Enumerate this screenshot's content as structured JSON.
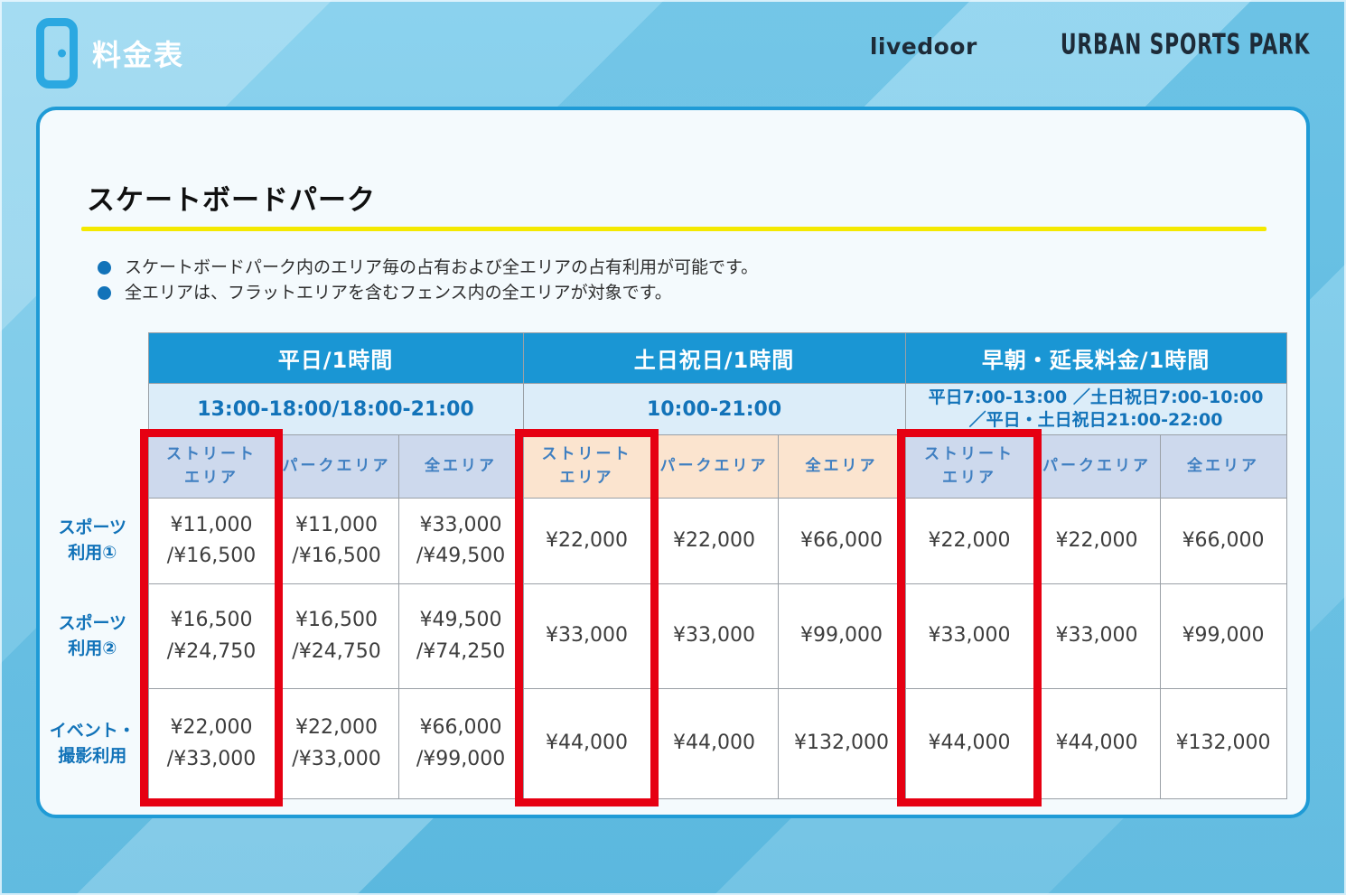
{
  "page_title": "料金表",
  "logo": {
    "livedoor": "livedoor",
    "park": "URBAN SPORTS PARK"
  },
  "section": {
    "title": "スケートボードパーク",
    "notes": [
      "スケートボードパーク内のエリア毎の占有および全エリアの占有利用が可能です。",
      "全エリアは、フラットエリアを含むフェンス内の全エリアが対象です。"
    ]
  },
  "table": {
    "groups": [
      {
        "label": "平日/1時間",
        "time": "13:00-18:00/18:00-21:00"
      },
      {
        "label": "土日祝日/1時間",
        "time": "10:00-21:00"
      },
      {
        "label": "早朝・延長料金/1時間",
        "time": "平日7:00-13:00 ／土日祝日7:00-10:00\n／平日・土日祝日21:00-22:00"
      }
    ],
    "area_headers": [
      "ストリート\nエリア",
      "パークエリア",
      "全エリア"
    ],
    "rows": [
      {
        "label": "スポーツ\n利用①",
        "values": [
          "¥11,000\n/¥16,500",
          "¥11,000\n/¥16,500",
          "¥33,000\n/¥49,500",
          "¥22,000",
          "¥22,000",
          "¥66,000",
          "¥22,000",
          "¥22,000",
          "¥66,000"
        ]
      },
      {
        "label": "スポーツ\n利用②",
        "values": [
          "¥16,500\n/¥24,750",
          "¥16,500\n/¥24,750",
          "¥49,500\n/¥74,250",
          "¥33,000",
          "¥33,000",
          "¥99,000",
          "¥33,000",
          "¥33,000",
          "¥99,000"
        ]
      },
      {
        "label": "イベント・\n撮影利用",
        "values": [
          "¥22,000\n/¥33,000",
          "¥22,000\n/¥33,000",
          "¥66,000\n/¥99,000",
          "¥44,000",
          "¥44,000",
          "¥132,000",
          "¥44,000",
          "¥44,000",
          "¥132,000"
        ]
      }
    ]
  },
  "colors": {
    "accent_red": "#e60012",
    "brand_blue": "#1a96d4",
    "deep_blue": "#1273b9",
    "lavender_header": "#cdd9ed",
    "peach_header": "#fbe4cf",
    "yellow_rule": "#f4e900"
  }
}
